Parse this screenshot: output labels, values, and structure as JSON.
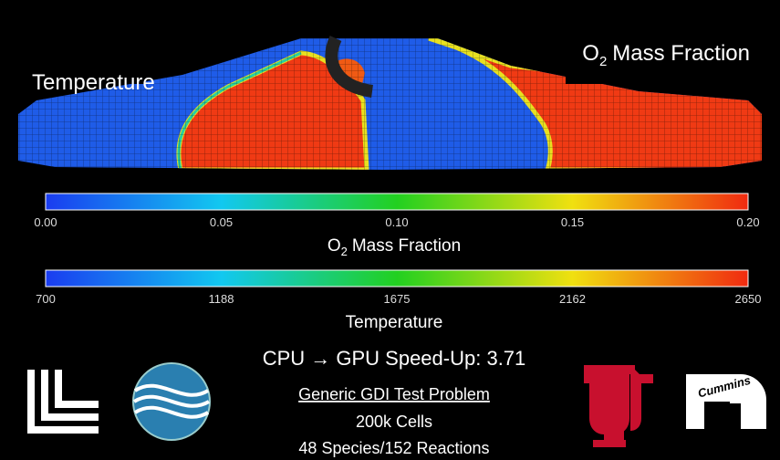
{
  "header": {
    "left_label": "Temperature",
    "right_label": {
      "base": "O",
      "sub": "2",
      "rest": "Mass Fraction"
    }
  },
  "colorbars": [
    {
      "ticks": [
        "0.00",
        "0.05",
        "0.10",
        "0.15",
        "0.20"
      ],
      "label": {
        "base": "O",
        "sub": "2",
        "rest": "Mass Fraction"
      }
    },
    {
      "ticks": [
        "700",
        "1188",
        "1675",
        "2162",
        "2650"
      ],
      "label": {
        "base": "Temperature"
      }
    }
  ],
  "speedup": "CPU → GPU Speed-Up: 3.71",
  "problem": {
    "title": "Generic GDI Test Problem",
    "lines": [
      "200k Cells",
      "48 Species/152 Reactions"
    ]
  },
  "logos": {
    "cummins": "Cummins"
  }
}
